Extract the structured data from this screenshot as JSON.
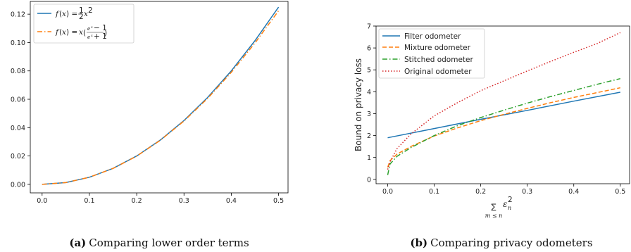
{
  "chart_data": [
    {
      "type": "line",
      "caption_label": "(a)",
      "caption_text": "Comparing lower order terms",
      "xlim": [
        -0.025,
        0.52
      ],
      "ylim": [
        -0.006,
        0.129
      ],
      "xticks": [
        "0.0",
        "0.1",
        "0.2",
        "0.3",
        "0.4",
        "0.5"
      ],
      "yticks": [
        "0.00",
        "0.02",
        "0.04",
        "0.06",
        "0.08",
        "0.10",
        "0.12"
      ],
      "grid": false,
      "legend_position": "top-left",
      "series": [
        {
          "name": "f(x) = ½x²",
          "style": "solid",
          "color": "#1f77b4",
          "x": [
            0.0,
            0.05,
            0.1,
            0.15,
            0.2,
            0.25,
            0.3,
            0.35,
            0.4,
            0.45,
            0.5
          ],
          "y": [
            0.0,
            0.00125,
            0.005,
            0.01125,
            0.02,
            0.03125,
            0.045,
            0.06125,
            0.08,
            0.10125,
            0.125
          ]
        },
        {
          "name": "f(x) = x((eˣ−1)/(eˣ+1))",
          "style": "dashdot",
          "color": "#ff7f0e",
          "x": [
            0.0,
            0.05,
            0.1,
            0.15,
            0.2,
            0.25,
            0.3,
            0.35,
            0.4,
            0.45,
            0.5
          ],
          "y": [
            0.0,
            0.00125,
            0.005,
            0.01122,
            0.01993,
            0.0311,
            0.04466,
            0.06062,
            0.07895,
            0.09961,
            0.12246
          ]
        }
      ]
    },
    {
      "type": "line",
      "caption_label": "(b)",
      "caption_text": "Comparing privacy odometers",
      "ylabel": "Bound on privacy loss",
      "xlim": [
        -0.025,
        0.52
      ],
      "ylim": [
        -0.2,
        7.0
      ],
      "xticks": [
        "0.0",
        "0.1",
        "0.2",
        "0.3",
        "0.4",
        "0.5"
      ],
      "yticks": [
        "0",
        "1",
        "2",
        "3",
        "4",
        "5",
        "6",
        "7"
      ],
      "grid": false,
      "legend_position": "top-left",
      "series": [
        {
          "name": "Filter odometer",
          "style": "solid",
          "color": "#1f77b4",
          "x": [
            0.0,
            0.1,
            0.2,
            0.3,
            0.4,
            0.5
          ],
          "y": [
            1.9,
            2.32,
            2.74,
            3.15,
            3.57,
            3.98
          ]
        },
        {
          "name": "Mixture odometer",
          "style": "dashed",
          "color": "#ff7f0e",
          "x": [
            0.0,
            0.005,
            0.02,
            0.05,
            0.1,
            0.15,
            0.2,
            0.25,
            0.3,
            0.35,
            0.4,
            0.45,
            0.5
          ],
          "y": [
            0.55,
            0.85,
            1.15,
            1.5,
            1.98,
            2.35,
            2.68,
            2.97,
            3.24,
            3.5,
            3.74,
            3.96,
            4.18
          ]
        },
        {
          "name": "Stitched odometer",
          "style": "dashdot",
          "color": "#2ca02c",
          "x": [
            0.0,
            0.005,
            0.02,
            0.05,
            0.1,
            0.15,
            0.2,
            0.25,
            0.3,
            0.35,
            0.4,
            0.45,
            0.5
          ],
          "y": [
            0.2,
            0.7,
            1.05,
            1.45,
            2.0,
            2.45,
            2.82,
            3.16,
            3.48,
            3.78,
            4.06,
            4.34,
            4.6
          ]
        },
        {
          "name": "Original odometer",
          "style": "dotted",
          "color": "#d62728",
          "x": [
            0.0,
            0.005,
            0.02,
            0.05,
            0.1,
            0.15,
            0.2,
            0.25,
            0.3,
            0.35,
            0.4,
            0.45,
            0.5
          ],
          "y": [
            0.45,
            0.8,
            1.4,
            2.07,
            2.9,
            3.5,
            4.05,
            4.5,
            4.95,
            5.38,
            5.8,
            6.2,
            6.7
          ]
        }
      ]
    }
  ]
}
